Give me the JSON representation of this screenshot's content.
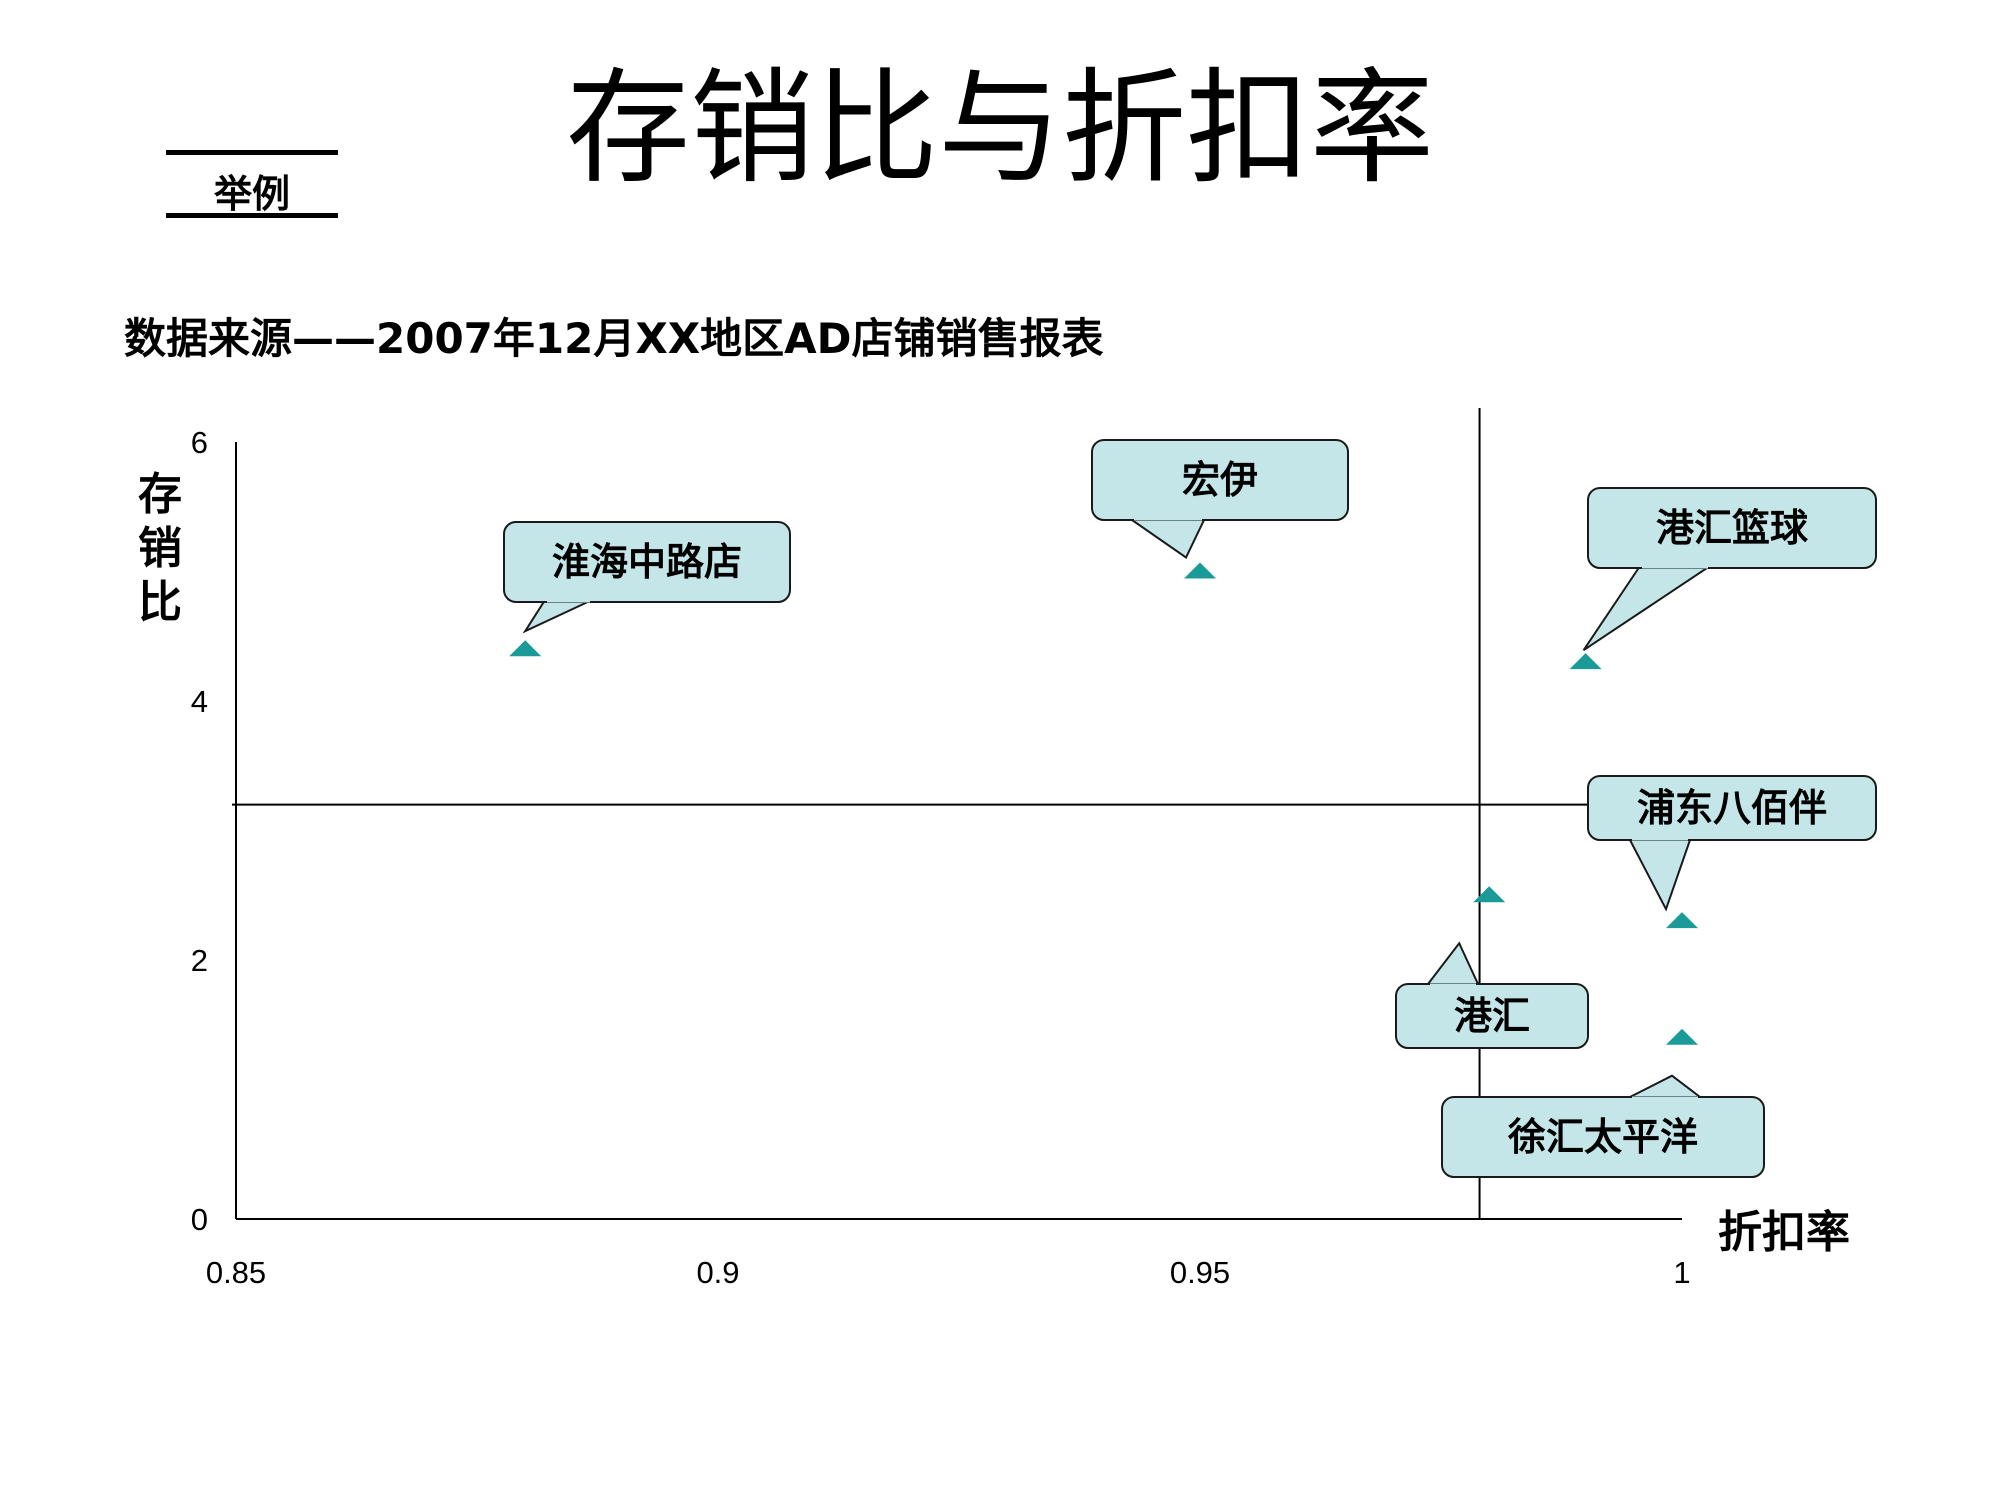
{
  "page": {
    "title": "存销比与折扣率",
    "example_label": "举例",
    "source": "数据来源——2007年12月XX地区AD店铺销售报表"
  },
  "colors": {
    "marker": "#1b9b98",
    "callout_fill": "#c5e6e9",
    "callout_stroke": "#1a1a1a",
    "axis": "#000000"
  },
  "chart_data": {
    "type": "scatter",
    "xlabel": "折扣率",
    "ylabel": "存销比",
    "xlim": [
      0.85,
      1
    ],
    "ylim": [
      0,
      6
    ],
    "xticks": [
      0.85,
      0.9,
      0.95,
      1
    ],
    "xtick_labels": [
      "0.85",
      "0.9",
      "0.95",
      "1"
    ],
    "yticks": [
      0,
      2,
      4,
      6
    ],
    "ytick_labels": [
      "0",
      "2",
      "4",
      "6"
    ],
    "reference_lines": {
      "x": 0.979,
      "y": 3.2
    },
    "grid": false,
    "marker": "triangle",
    "points": [
      {
        "label": "淮海中路店",
        "x": 0.88,
        "y": 4.4
      },
      {
        "label": "宏伊",
        "x": 0.95,
        "y": 5.0
      },
      {
        "label": "港汇篮球",
        "x": 0.99,
        "y": 4.3
      },
      {
        "label": "浦东八佰伴",
        "x": 1.0,
        "y": 2.3
      },
      {
        "label": "港汇",
        "x": 0.98,
        "y": 2.5
      },
      {
        "label": "徐汇太平洋",
        "x": 1.0,
        "y": 1.4
      }
    ]
  }
}
